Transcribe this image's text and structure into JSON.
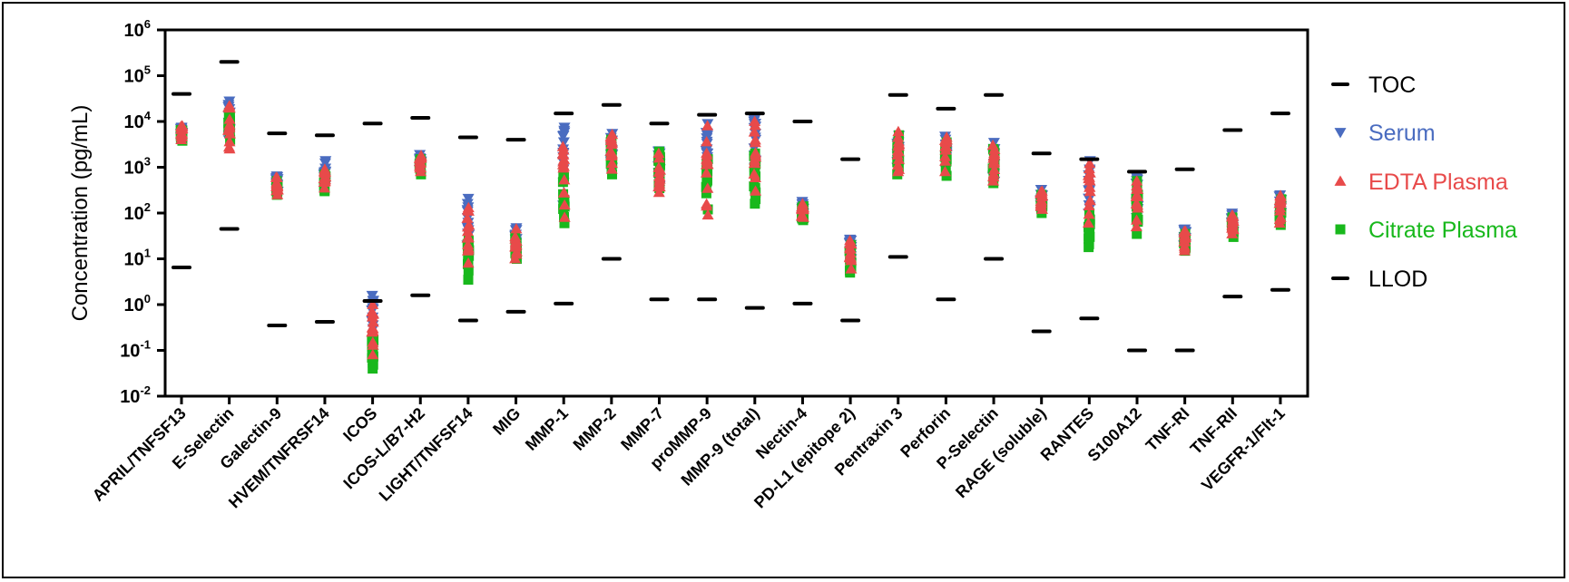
{
  "chart_data": {
    "type": "scatter",
    "ylabel": "Concentration (pg/mL)",
    "yscale": "log",
    "ylim": [
      0.01,
      1000000
    ],
    "yticks": [
      {
        "base": "10",
        "exp": "-2"
      },
      {
        "base": "10",
        "exp": "-1"
      },
      {
        "base": "10",
        "exp": "0"
      },
      {
        "base": "10",
        "exp": "1"
      },
      {
        "base": "10",
        "exp": "2"
      },
      {
        "base": "10",
        "exp": "3"
      },
      {
        "base": "10",
        "exp": "4"
      },
      {
        "base": "10",
        "exp": "5"
      },
      {
        "base": "10",
        "exp": "6"
      }
    ],
    "categories": [
      "APRIL/TNFSF13",
      "E-Selectin",
      "Galectin-9",
      "HVEM/TNFRSF14",
      "ICOS",
      "ICOS-L/B7-H2",
      "LIGHT/TNFSF14",
      "MIG",
      "MMP-1",
      "MMP-2",
      "MMP-7",
      "proMMP-9",
      "MMP-9 (total)",
      "Nectin-4",
      "PD-L1 (epitope 2)",
      "Pentraxin 3",
      "Perforin",
      "P-Selectin",
      "RAGE (soluble)",
      "RANTES",
      "S100A12",
      "TNF-RI",
      "TNF-RII",
      "VEGFR-1/Flt-1"
    ],
    "toc": [
      40000,
      200000,
      5500,
      5000,
      9000,
      12000,
      4500,
      4000,
      15000,
      23000,
      9000,
      14000,
      15000,
      10000,
      1500,
      38000,
      19000,
      38000,
      2000,
      1500,
      800,
      900,
      6500,
      15000
    ],
    "llod": [
      6.5,
      45,
      0.35,
      0.42,
      1.2,
      1.6,
      0.45,
      0.7,
      1.05,
      10,
      1.3,
      1.3,
      0.85,
      1.05,
      0.45,
      11,
      1.3,
      10,
      0.26,
      0.5,
      0.1,
      0.1,
      1.5,
      2.1
    ],
    "series": [
      {
        "name": "Serum",
        "marker": "triangle-down",
        "color": "#4a6cc0",
        "ranges": [
          [
            4500,
            7500
          ],
          [
            4000,
            28000
          ],
          [
            300,
            650
          ],
          [
            400,
            1400
          ],
          [
            0.3,
            1.6
          ],
          [
            900,
            1900
          ],
          [
            20,
            210
          ],
          [
            15,
            48
          ],
          [
            150,
            7500
          ],
          [
            1000,
            5500
          ],
          [
            400,
            2300
          ],
          [
            1000,
            9000
          ],
          [
            1000,
            11000
          ],
          [
            100,
            180
          ],
          [
            8,
            27
          ],
          [
            1000,
            5000
          ],
          [
            900,
            4800
          ],
          [
            500,
            3500
          ],
          [
            150,
            330
          ],
          [
            100,
            1400
          ],
          [
            80,
            650
          ],
          [
            20,
            45
          ],
          [
            40,
            100
          ],
          [
            80,
            250
          ]
        ]
      },
      {
        "name": "EDTA Plasma",
        "marker": "triangle-up",
        "color": "#e84a4a",
        "ranges": [
          [
            4000,
            8000
          ],
          [
            2500,
            22000
          ],
          [
            250,
            600
          ],
          [
            350,
            900
          ],
          [
            0.08,
            1.0
          ],
          [
            800,
            1800
          ],
          [
            8,
            130
          ],
          [
            10,
            45
          ],
          [
            80,
            2800
          ],
          [
            900,
            5200
          ],
          [
            280,
            2000
          ],
          [
            90,
            8000
          ],
          [
            300,
            10000
          ],
          [
            80,
            160
          ],
          [
            6,
            25
          ],
          [
            800,
            6000
          ],
          [
            800,
            4500
          ],
          [
            500,
            3000
          ],
          [
            120,
            300
          ],
          [
            60,
            1200
          ],
          [
            50,
            500
          ],
          [
            15,
            40
          ],
          [
            35,
            90
          ],
          [
            60,
            240
          ]
        ]
      },
      {
        "name": "Citrate Plasma",
        "marker": "square",
        "color": "#18b81c",
        "ranges": [
          [
            3800,
            6500
          ],
          [
            4000,
            15000
          ],
          [
            250,
            500
          ],
          [
            300,
            700
          ],
          [
            0.04,
            0.2
          ],
          [
            700,
            1500
          ],
          [
            3.5,
            25
          ],
          [
            10,
            30
          ],
          [
            60,
            700
          ],
          [
            700,
            4000
          ],
          [
            350,
            2200
          ],
          [
            120,
            1500
          ],
          [
            160,
            2000
          ],
          [
            70,
            140
          ],
          [
            5,
            20
          ],
          [
            700,
            5000
          ],
          [
            650,
            3500
          ],
          [
            450,
            2500
          ],
          [
            100,
            250
          ],
          [
            18,
            100
          ],
          [
            35,
            500
          ],
          [
            15,
            35
          ],
          [
            30,
            80
          ],
          [
            55,
            200
          ]
        ]
      }
    ],
    "legend": [
      "TOC",
      "Serum",
      "EDTA Plasma",
      "Citrate Plasma",
      "LLOD"
    ],
    "legend_position": "right"
  }
}
